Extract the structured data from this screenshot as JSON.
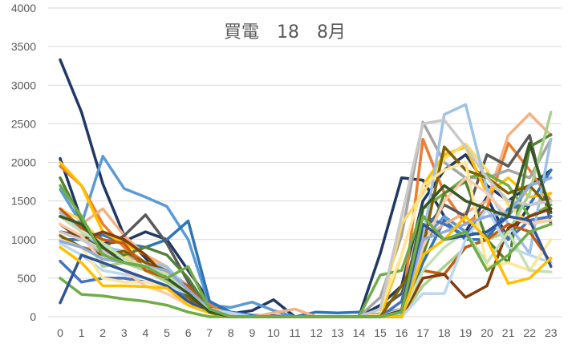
{
  "chart_data": {
    "type": "line",
    "title": "買電　18　8月",
    "xlabel": "",
    "ylabel": "",
    "x": [
      0,
      1,
      2,
      3,
      4,
      5,
      6,
      7,
      8,
      9,
      10,
      11,
      12,
      13,
      14,
      15,
      16,
      17,
      18,
      19,
      20,
      21,
      22,
      23
    ],
    "ylim": [
      0,
      4000
    ],
    "yticks": [
      0,
      500,
      1000,
      1500,
      2000,
      2500,
      3000,
      3500,
      4000
    ],
    "grid": true,
    "legend": "none",
    "series": [
      {
        "color": "#1f3864",
        "values": [
          3330,
          2650,
          1720,
          1050,
          760,
          480,
          270,
          110,
          40,
          20,
          10,
          0,
          0,
          0,
          0,
          150,
          400,
          1500,
          1900,
          2100,
          1700,
          1500,
          1700,
          1900
        ]
      },
      {
        "color": "#203864",
        "values": [
          2050,
          1250,
          950,
          980,
          1100,
          1000,
          600,
          200,
          40,
          80,
          220,
          0,
          0,
          0,
          0,
          820,
          1800,
          1770,
          1300,
          1100,
          1550,
          1000,
          1450,
          1500
        ]
      },
      {
        "color": "#5b9bd5",
        "values": [
          1650,
          1200,
          2080,
          1660,
          1550,
          1430,
          1000,
          150,
          120,
          190,
          80,
          0,
          0,
          0,
          0,
          40,
          100,
          1000,
          1300,
          1100,
          1050,
          1300,
          1700,
          1800
        ]
      },
      {
        "color": "#2e75b6",
        "values": [
          1000,
          1000,
          1060,
          950,
          900,
          1000,
          1240,
          200,
          60,
          20,
          0,
          0,
          60,
          50,
          60,
          0,
          0,
          700,
          1250,
          1000,
          1000,
          1400,
          1450,
          1900
        ]
      },
      {
        "color": "#ed7d31",
        "values": [
          1950,
          1700,
          1200,
          900,
          700,
          600,
          400,
          150,
          20,
          0,
          0,
          0,
          0,
          0,
          0,
          0,
          50,
          2300,
          1600,
          1200,
          1400,
          2250,
          1900,
          1500
        ]
      },
      {
        "color": "#f4b183",
        "values": [
          1300,
          1200,
          1400,
          1050,
          800,
          650,
          200,
          80,
          20,
          0,
          50,
          100,
          0,
          0,
          0,
          0,
          80,
          1000,
          1200,
          1350,
          1500,
          2350,
          2630,
          2350
        ]
      },
      {
        "color": "#a5a5a5",
        "values": [
          1050,
          900,
          850,
          800,
          700,
          600,
          400,
          100,
          0,
          0,
          0,
          0,
          0,
          0,
          0,
          250,
          1050,
          2520,
          2000,
          1800,
          1800,
          1900,
          1800,
          2300
        ]
      },
      {
        "color": "#595959",
        "values": [
          1100,
          1050,
          900,
          1050,
          1320,
          950,
          450,
          100,
          0,
          0,
          0,
          0,
          0,
          0,
          0,
          100,
          300,
          1100,
          1450,
          1300,
          2100,
          1950,
          2350,
          1200
        ]
      },
      {
        "color": "#ffc000",
        "values": [
          2000,
          1700,
          1100,
          950,
          800,
          550,
          330,
          100,
          0,
          0,
          0,
          0,
          0,
          0,
          0,
          0,
          800,
          1700,
          2100,
          2200,
          1600,
          1800,
          1550,
          1600
        ]
      },
      {
        "color": "#ffd966",
        "values": [
          1400,
          1250,
          950,
          800,
          600,
          500,
          200,
          50,
          0,
          0,
          0,
          0,
          0,
          0,
          0,
          30,
          1200,
          1600,
          2050,
          2240,
          1900,
          1450,
          1200,
          1300
        ]
      },
      {
        "color": "#4472c4",
        "values": [
          720,
          450,
          500,
          500,
          450,
          400,
          250,
          80,
          0,
          0,
          0,
          0,
          0,
          0,
          0,
          0,
          200,
          1300,
          1200,
          1050,
          1400,
          1000,
          1250,
          1300
        ]
      },
      {
        "color": "#70ad47",
        "values": [
          500,
          290,
          270,
          230,
          200,
          150,
          60,
          0,
          0,
          0,
          0,
          0,
          0,
          0,
          0,
          540,
          600,
          1400,
          1600,
          1800,
          1850,
          1700,
          1300,
          1450
        ]
      },
      {
        "color": "#548235",
        "values": [
          1800,
          1250,
          850,
          800,
          900,
          800,
          500,
          80,
          0,
          0,
          0,
          0,
          0,
          0,
          0,
          0,
          0,
          800,
          1600,
          1750,
          1000,
          700,
          2200,
          2360
        ]
      },
      {
        "color": "#a9d18e",
        "values": [
          1300,
          1100,
          650,
          700,
          600,
          450,
          300,
          80,
          0,
          0,
          0,
          0,
          0,
          0,
          0,
          0,
          0,
          400,
          650,
          900,
          1000,
          1100,
          1600,
          2650
        ]
      },
      {
        "color": "#9dc3e6",
        "values": [
          1350,
          1100,
          900,
          850,
          700,
          650,
          350,
          100,
          0,
          0,
          0,
          0,
          0,
          0,
          0,
          0,
          0,
          1000,
          2620,
          2750,
          1650,
          1200,
          820,
          2300
        ]
      },
      {
        "color": "#806000",
        "values": [
          1050,
          900,
          800,
          850,
          700,
          600,
          250,
          50,
          0,
          0,
          0,
          0,
          0,
          0,
          0,
          0,
          400,
          900,
          2200,
          1900,
          1800,
          1600,
          1700,
          1400
        ]
      },
      {
        "color": "#c55a11",
        "values": [
          1400,
          1150,
          1000,
          950,
          600,
          500,
          400,
          80,
          0,
          0,
          0,
          0,
          0,
          0,
          0,
          0,
          0,
          600,
          550,
          900,
          1000,
          1200,
          1100,
          700
        ]
      },
      {
        "color": "#843c0c",
        "values": [
          1200,
          1000,
          1100,
          1000,
          800,
          500,
          300,
          50,
          0,
          0,
          0,
          0,
          0,
          0,
          0,
          0,
          0,
          500,
          550,
          250,
          400,
          1150,
          1300,
          1400
        ]
      },
      {
        "color": "#bdd7ee",
        "values": [
          950,
          800,
          600,
          550,
          500,
          400,
          300,
          100,
          50,
          0,
          0,
          0,
          0,
          0,
          0,
          0,
          0,
          300,
          300,
          1000,
          1400,
          900,
          800,
          700
        ]
      },
      {
        "color": "#ffe699",
        "values": [
          1000,
          900,
          500,
          450,
          450,
          400,
          200,
          50,
          0,
          0,
          0,
          0,
          0,
          0,
          0,
          100,
          800,
          1700,
          1900,
          2000,
          650,
          700,
          600,
          1000
        ]
      },
      {
        "color": "#f8cbad",
        "values": [
          1200,
          1050,
          700,
          600,
          400,
          300,
          150,
          50,
          0,
          0,
          0,
          0,
          0,
          0,
          0,
          0,
          100,
          900,
          1500,
          1800,
          1600,
          1300,
          1200,
          1250
        ]
      },
      {
        "color": "#c9c9c9",
        "values": [
          1100,
          1000,
          850,
          700,
          650,
          550,
          300,
          80,
          0,
          0,
          0,
          0,
          0,
          0,
          0,
          100,
          1300,
          2500,
          2550,
          2200,
          1800,
          1500,
          1450,
          1500
        ]
      },
      {
        "color": "#8faadc",
        "values": [
          980,
          900,
          750,
          700,
          650,
          600,
          350,
          100,
          0,
          0,
          0,
          0,
          0,
          0,
          0,
          0,
          50,
          1000,
          1100,
          1200,
          1300,
          1350,
          1700,
          1800
        ]
      },
      {
        "color": "#c5e0b4",
        "values": [
          1300,
          1100,
          950,
          750,
          650,
          550,
          300,
          80,
          0,
          0,
          0,
          0,
          0,
          0,
          0,
          0,
          30,
          600,
          900,
          1100,
          700,
          1100,
          600,
          580
        ]
      },
      {
        "color": "#2f5597",
        "values": [
          180,
          800,
          700,
          600,
          500,
          400,
          200,
          50,
          0,
          0,
          0,
          0,
          0,
          0,
          0,
          0,
          0,
          1200,
          1000,
          1050,
          1100,
          1300,
          1250,
          650
        ]
      },
      {
        "color": "#ffc000",
        "values": [
          900,
          700,
          400,
          400,
          390,
          370,
          150,
          50,
          0,
          0,
          0,
          0,
          0,
          0,
          0,
          0,
          0,
          800,
          1000,
          1300,
          1000,
          430,
          500,
          760
        ]
      },
      {
        "color": "#385723",
        "values": [
          1300,
          1200,
          900,
          700,
          650,
          500,
          300,
          60,
          0,
          0,
          0,
          0,
          0,
          0,
          0,
          0,
          80,
          1400,
          1700,
          1500,
          1400,
          1300,
          2250,
          1350
        ]
      },
      {
        "color": "#70ad47",
        "values": [
          1700,
          1300,
          800,
          700,
          650,
          500,
          650,
          100,
          0,
          0,
          0,
          0,
          0,
          0,
          0,
          0,
          60,
          1300,
          1000,
          1100,
          600,
          800,
          1100,
          1200
        ]
      }
    ]
  }
}
